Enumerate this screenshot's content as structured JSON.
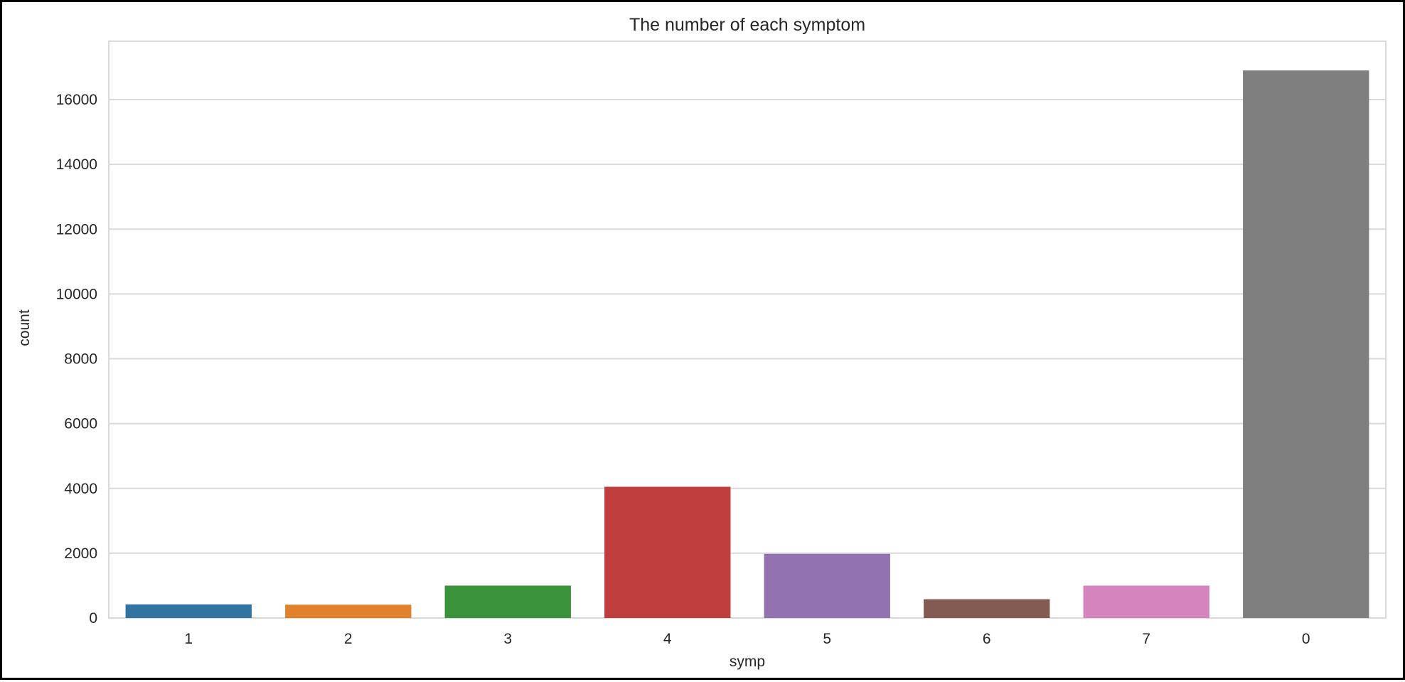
{
  "chart_data": {
    "type": "bar",
    "title": "The number of each symptom",
    "xlabel": "symp",
    "ylabel": "count",
    "categories": [
      "1",
      "2",
      "3",
      "4",
      "5",
      "6",
      "7",
      "0"
    ],
    "values": [
      420,
      410,
      1000,
      4050,
      1980,
      580,
      1000,
      16900
    ],
    "colors": [
      "#3274a1",
      "#e1812c",
      "#3a923a",
      "#c03d3e",
      "#9372b2",
      "#845b53",
      "#d684bd",
      "#7f7f7f"
    ],
    "ylim": [
      0,
      17800
    ],
    "yticks": [
      0,
      2000,
      4000,
      6000,
      8000,
      10000,
      12000,
      14000,
      16000
    ],
    "ytick_labels": [
      "0",
      "2000",
      "4000",
      "6000",
      "8000",
      "10000",
      "12000",
      "14000",
      "16000"
    ],
    "grid": true,
    "grid_axis": "y",
    "gridline_color": "#d9d9d9",
    "spine_color": "#d9d9d9",
    "text_color": "#262626"
  }
}
